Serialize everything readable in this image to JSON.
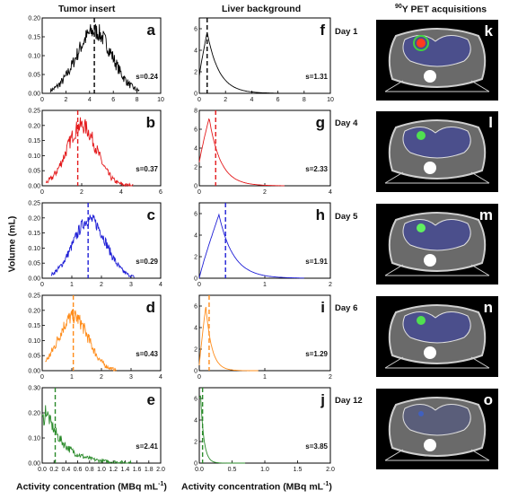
{
  "headers": {
    "tumor": "Tumor insert",
    "liver": "Liver background",
    "pet_prefix": "90",
    "pet_main": "Y PET acquisitions"
  },
  "ylabel": "Volume (mL)",
  "xlabel_tumor": "Activity concentration (MBq mL",
  "xlabel_liver": "Activity concentration (MBq mL",
  "xlabel_sup": "-1",
  "xlabel_close": ")",
  "days": [
    "Day 1",
    "Day 4",
    "Day 5",
    "Day 6",
    "Day 12"
  ],
  "pet_letters": [
    "k",
    "l",
    "m",
    "n",
    "o"
  ],
  "colors": [
    "#000000",
    "#e41a1c",
    "#1f1fd6",
    "#ff8c1a",
    "#2a8a2a"
  ],
  "chart_data": [
    {
      "type": "line",
      "panel": "a",
      "column": "tumor",
      "color": "#000000",
      "s_label": "s=0.24",
      "xlim": [
        0,
        10
      ],
      "xticks": [
        "0",
        "2",
        "4",
        "6",
        "8",
        "10"
      ],
      "ylim": [
        0,
        0.2
      ],
      "yticks": [
        "0.00",
        "0.05",
        "0.10",
        "0.15",
        "0.20"
      ],
      "dashed_x": 4.4,
      "shape": "gauss",
      "peak_x": 4.4,
      "sigma": 1.5,
      "peak_y": 0.165,
      "noise": 0.025,
      "x_start": 0.7,
      "x_end": 8.2
    },
    {
      "type": "line",
      "panel": "b",
      "column": "tumor",
      "color": "#e41a1c",
      "s_label": "s=0.37",
      "xlim": [
        0,
        6
      ],
      "xticks": [
        "0",
        "2",
        "4",
        "6"
      ],
      "ylim": [
        0,
        0.25
      ],
      "yticks": [
        "0.00",
        "0.05",
        "0.10",
        "0.15",
        "0.20",
        "0.25"
      ],
      "dashed_x": 1.8,
      "shape": "gauss",
      "peak_x": 2.0,
      "sigma": 0.75,
      "peak_y": 0.2,
      "noise": 0.028,
      "x_start": 0.2,
      "x_end": 4.6
    },
    {
      "type": "line",
      "panel": "c",
      "column": "tumor",
      "color": "#1f1fd6",
      "s_label": "s=0.29",
      "xlim": [
        0,
        4
      ],
      "xticks": [
        "0",
        "1",
        "2",
        "3",
        "4"
      ],
      "ylim": [
        0,
        0.25
      ],
      "yticks": [
        "0.00",
        "0.05",
        "0.10",
        "0.15",
        "0.20",
        "0.25"
      ],
      "dashed_x": 1.55,
      "shape": "gauss",
      "peak_x": 1.6,
      "sigma": 0.55,
      "peak_y": 0.195,
      "noise": 0.022,
      "x_start": 0.3,
      "x_end": 3.1
    },
    {
      "type": "line",
      "panel": "d",
      "column": "tumor",
      "color": "#ff8c1a",
      "s_label": "s=0.43",
      "xlim": [
        0,
        4
      ],
      "xticks": [
        "0",
        "1",
        "2",
        "3",
        "4"
      ],
      "ylim": [
        0,
        0.25
      ],
      "yticks": [
        "0.00",
        "0.05",
        "0.10",
        "0.15",
        "0.20",
        "0.25"
      ],
      "dashed_x": 1.05,
      "shape": "gauss",
      "peak_x": 1.05,
      "sigma": 0.5,
      "peak_y": 0.18,
      "noise": 0.025,
      "x_start": 0.1,
      "x_end": 2.5
    },
    {
      "type": "line",
      "panel": "e",
      "column": "tumor",
      "color": "#2a8a2a",
      "s_label": "s=2.41",
      "xlim": [
        0,
        2.0
      ],
      "xticks": [
        "0.0",
        "0.2",
        "0.4",
        "0.6",
        "0.8",
        "1.0",
        "1.2",
        "1.4",
        "1.6",
        "1.8",
        "2.0"
      ],
      "ylim": [
        0,
        0.3
      ],
      "yticks": [
        "0.00",
        "0.10",
        "0.20",
        "0.30"
      ],
      "dashed_x": 0.22,
      "shape": "decay",
      "peak_x": 0.05,
      "tau": 0.3,
      "peak_y": 0.22,
      "noise": 0.03,
      "x_start": 0.0,
      "x_end": 1.5
    },
    {
      "type": "line",
      "panel": "f",
      "column": "liver",
      "color": "#000000",
      "s_label": "s=1.31",
      "xlim": [
        0,
        10
      ],
      "xticks": [
        "0",
        "2",
        "4",
        "6",
        "8",
        "10"
      ],
      "ylim": [
        0,
        7
      ],
      "yticks": [
        "0",
        "2",
        "4",
        "6"
      ],
      "dashed_x": 0.6,
      "shape": "skew",
      "peak_x": 0.6,
      "rise": 0.3,
      "tau": 0.9,
      "peak_y": 5.7,
      "start_y": 1.6,
      "noise": 0.05,
      "x_start": 0.0,
      "x_end": 10.0
    },
    {
      "type": "line",
      "panel": "g",
      "column": "liver",
      "color": "#e41a1c",
      "s_label": "s=2.33",
      "xlim": [
        0,
        4
      ],
      "xticks": [
        "0",
        "2",
        "4"
      ],
      "ylim": [
        0,
        8
      ],
      "yticks": [
        "0",
        "2",
        "4",
        "6",
        "8"
      ],
      "dashed_x": 0.5,
      "shape": "skew",
      "peak_x": 0.3,
      "rise": 0.15,
      "tau": 0.35,
      "peak_y": 7.2,
      "start_y": 2.5,
      "noise": 0.06,
      "x_start": 0.0,
      "x_end": 2.6
    },
    {
      "type": "line",
      "panel": "h",
      "column": "liver",
      "color": "#1f1fd6",
      "s_label": "s=1.91",
      "xlim": [
        0,
        2
      ],
      "xticks": [
        "0",
        "1",
        "2"
      ],
      "ylim": [
        0,
        7
      ],
      "yticks": [
        "0",
        "2",
        "4",
        "6"
      ],
      "dashed_x": 0.4,
      "shape": "skew",
      "peak_x": 0.3,
      "rise": 0.18,
      "tau": 0.22,
      "peak_y": 5.9,
      "start_y": 0.0,
      "noise": 0.06,
      "x_start": 0.0,
      "x_end": 1.6
    },
    {
      "type": "line",
      "panel": "i",
      "column": "liver",
      "color": "#ff8c1a",
      "s_label": "s=1.29",
      "xlim": [
        0,
        2
      ],
      "xticks": [
        "0",
        "1",
        "2"
      ],
      "ylim": [
        0,
        7
      ],
      "yticks": [
        "0",
        "2",
        "4",
        "6"
      ],
      "dashed_x": 0.15,
      "shape": "skew",
      "peak_x": 0.1,
      "rise": 0.05,
      "tau": 0.09,
      "peak_y": 6.0,
      "start_y": 0.5,
      "noise": 0.05,
      "x_start": 0.0,
      "x_end": 0.9
    },
    {
      "type": "line",
      "panel": "j",
      "column": "liver",
      "color": "#2a8a2a",
      "s_label": "s=3.85",
      "xlim": [
        0,
        2.0
      ],
      "xticks": [
        "0.0",
        "0.5",
        "1.0",
        "1.5",
        "2.0"
      ],
      "ylim": [
        0,
        7
      ],
      "yticks": [
        "0",
        "2",
        "4",
        "6"
      ],
      "dashed_x": 0.05,
      "shape": "skew",
      "peak_x": 0.02,
      "rise": 0.01,
      "tau": 0.05,
      "peak_y": 6.3,
      "start_y": 6.0,
      "noise": 0.05,
      "x_start": 0.0,
      "x_end": 0.7
    }
  ]
}
